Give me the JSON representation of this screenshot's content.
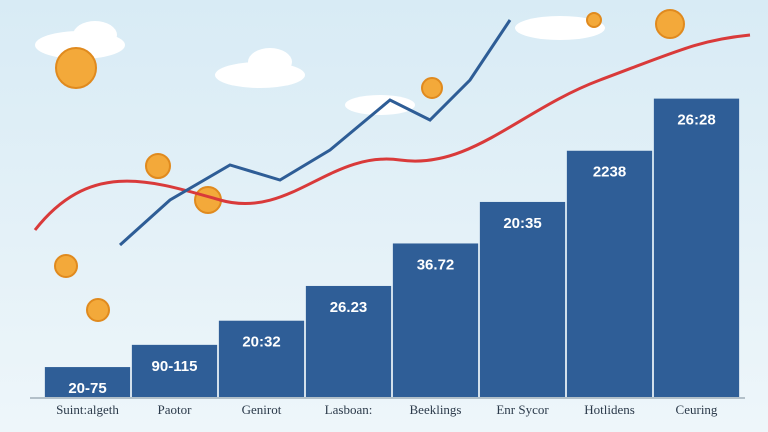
{
  "chart_data": {
    "type": "bar",
    "categories": [
      "Suint:algeth",
      "Paotor",
      "Genirot",
      "Lasboan:",
      "Beeklings",
      "Enr Sycor",
      "Hotlidens",
      "Ceuring"
    ],
    "values": [
      31,
      54,
      79,
      115,
      159,
      202,
      255,
      309
    ],
    "annotations": [
      "20-75",
      "90-115",
      "20:32",
      "26.23",
      "36.72",
      "20:35",
      "2238",
      "26:28"
    ],
    "color": "#2f5e97",
    "ylim": [
      0,
      320
    ]
  }
}
